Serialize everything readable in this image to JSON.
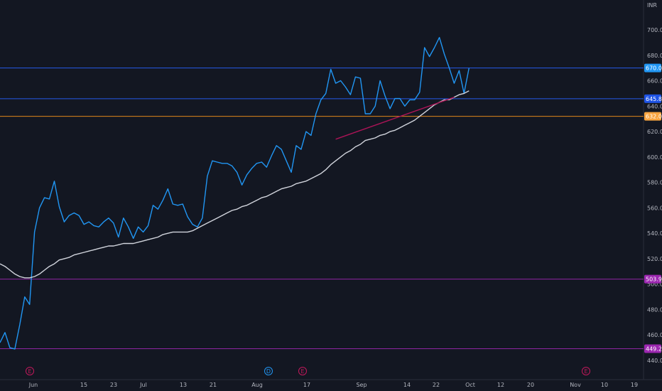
{
  "chart_data": {
    "type": "line",
    "currency": "INR",
    "ylim": [
      430,
      720
    ],
    "y_ticks": [
      440,
      460,
      480,
      500,
      520,
      540,
      560,
      580,
      600,
      620,
      640,
      660,
      680,
      700
    ],
    "y_tick_labels": [
      "440.00",
      "460.00",
      "480.00",
      "500.00",
      "520.00",
      "540.00",
      "560.00",
      "580.00",
      "600.00",
      "620.00",
      "640.00",
      "660.00",
      "680.00",
      "700.00"
    ],
    "x_tick_labels": [
      "Jun",
      "15",
      "23",
      "Jul",
      "13",
      "21",
      "Aug",
      "17",
      "Sep",
      "14",
      "22",
      "Oct",
      "12",
      "20",
      "Nov",
      "10",
      "19"
    ],
    "event_markers": [
      {
        "label": "E",
        "kind": "earnings"
      },
      {
        "label": "D",
        "kind": "dividend"
      },
      {
        "label": "E",
        "kind": "earnings"
      },
      {
        "label": "E",
        "kind": "earnings"
      }
    ],
    "horizontal_levels": [
      {
        "value": 670.0,
        "label": "670.00",
        "color": "#2962ff",
        "label_bg": "#2196f3"
      },
      {
        "value": 645.8,
        "label": "645.80",
        "color": "#2962ff",
        "label_bg": "#1e53e5"
      },
      {
        "value": 632.0,
        "label": "632.00",
        "color": "#f7931a",
        "label_bg": "#f7a440"
      },
      {
        "value": 503.95,
        "label": "503.95",
        "color": "#9c27b0",
        "label_bg": "#9c27b0"
      },
      {
        "value": 449.2,
        "label": "449.20",
        "color": "#9c27b0",
        "label_bg": "#9c27b0"
      }
    ],
    "series": [
      {
        "values": [
          454,
          462,
          450,
          449,
          468,
          490,
          484,
          541,
          560,
          568,
          567,
          581,
          561,
          549,
          554,
          556,
          554,
          547,
          549,
          546,
          545,
          549,
          552,
          548,
          537,
          552,
          545,
          536,
          545,
          541,
          546,
          562,
          559,
          566,
          575,
          563,
          562,
          563,
          553,
          547,
          545,
          552,
          585,
          597,
          596,
          595,
          595,
          593,
          588,
          578,
          586,
          591,
          595,
          596,
          592,
          601,
          609,
          606,
          597,
          588,
          609,
          606,
          620,
          617,
          634,
          645,
          650,
          669,
          658,
          660,
          655,
          649,
          663,
          662,
          634,
          634,
          640,
          660,
          648,
          638,
          646,
          646,
          640,
          645,
          645,
          651,
          686,
          679,
          686,
          694,
          681,
          670,
          658,
          668,
          650,
          670
        ],
        "color": "#2196f3"
      },
      {
        "values": [
          516,
          514,
          511,
          508,
          506,
          505,
          505,
          506,
          508,
          511,
          514,
          516,
          519,
          520,
          521,
          523,
          524,
          525,
          526,
          527,
          528,
          529,
          530,
          530,
          531,
          532,
          532,
          532,
          533,
          534,
          535,
          536,
          537,
          539,
          540,
          541,
          541,
          541,
          541,
          542,
          544,
          546,
          548,
          550,
          552,
          554,
          556,
          558,
          559,
          561,
          562,
          564,
          566,
          568,
          569,
          571,
          573,
          575,
          576,
          577,
          579,
          580,
          581,
          583,
          585,
          587,
          590,
          594,
          597,
          600,
          603,
          605,
          608,
          610,
          613,
          614,
          615,
          617,
          618,
          620,
          621,
          623,
          625,
          627,
          629,
          632,
          635,
          638,
          641,
          643,
          645,
          645,
          647,
          649,
          650,
          652
        ],
        "color": "#d1d4dc"
      }
    ],
    "trendlines": [
      {
        "start": [
          68,
          614
        ],
        "end": [
          92,
          647
        ],
        "color": "#ad1457"
      }
    ]
  }
}
